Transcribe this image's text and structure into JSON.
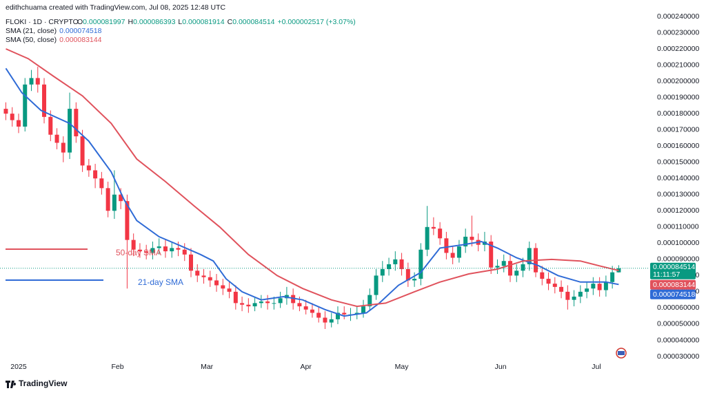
{
  "chart_data": {
    "type": "candlestick",
    "creator": "edithchuama created with TradingView.com, Jul 08, 2025 12:48 UTC",
    "symbol": "FLOKI · 1D · CRYPTO",
    "ohlc_labels": [
      "O",
      "H",
      "L",
      "C"
    ],
    "change_label": "+0.000002517 (+3.07%)",
    "countdown": "11:11:57",
    "brand": "TradingView",
    "up_color": "#089981",
    "down_color": "#f23645",
    "candles": {
      "x": [
        -4,
        -2,
        0,
        2,
        4,
        6,
        8,
        10,
        12,
        14,
        16,
        18,
        20,
        22,
        24,
        26,
        28,
        30,
        32,
        34,
        36,
        38,
        40,
        42,
        44,
        46,
        48,
        50,
        52,
        54,
        56,
        58,
        60,
        62,
        64,
        66,
        68,
        70,
        72,
        74,
        76,
        78,
        80,
        82,
        84,
        86,
        88,
        90,
        92,
        94,
        96,
        98,
        100,
        102,
        104,
        106,
        108,
        110,
        112,
        114,
        116,
        118,
        120,
        122,
        124,
        126,
        128,
        130,
        132,
        134,
        136,
        138,
        140,
        142,
        144,
        146,
        148,
        150,
        152,
        154,
        156,
        158,
        160,
        162,
        164,
        166,
        168,
        170,
        172,
        174,
        176,
        178,
        180,
        182,
        184,
        186,
        188
      ],
      "open": [
        0.000183,
        0.00018,
        0.000176,
        0.000172,
        0.000198,
        0.000202,
        0.000198,
        0.000178,
        0.000167,
        0.000162,
        0.000156,
        0.000183,
        0.000166,
        0.000148,
        0.000145,
        0.00014,
        0.000134,
        0.00012,
        0.00013,
        0.000126,
        0.000102,
        9.6e-05,
        9.5e-05,
        9.4e-05,
        9.7e-05,
        9.8e-05,
        9.5e-05,
        9.7e-05,
        9.6e-05,
        9.3e-05,
        8.3e-05,
        8e-05,
        7.9e-05,
        7.7e-05,
        7.4e-05,
        7.2e-05,
        7e-05,
        6.3e-05,
        6.2e-05,
        6.1e-05,
        6.3e-05,
        6.4e-05,
        6.3e-05,
        6.3e-05,
        6.6e-05,
        6.8e-05,
        6.3e-05,
        6.1e-05,
        5.9e-05,
        5.7e-05,
        5.4e-05,
        5.1e-05,
        5.3e-05,
        5.7e-05,
        5.6e-05,
        5.6e-05,
        5.7e-05,
        6.1e-05,
        6.8e-05,
        8e-05,
        8.4e-05,
        8.7e-05,
        9e-05,
        8.4e-05,
        7.7e-05,
        7.8e-05,
        9.6e-05,
        0.00011,
        0.000109,
        0.000103,
        9.4e-05,
        9.1e-05,
        9.8e-05,
        0.000104,
        0.000102,
        9.9e-05,
        0.000101,
        8.5e-05,
        8.6e-05,
        8.9e-05,
        8e-05,
        8.3e-05,
        8.7e-05,
        9.7e-05,
        8.2e-05,
        7.8e-05,
        7.5e-05,
        7.3e-05,
        7e-05,
        6.5e-05,
        6.7e-05,
        7e-05,
        7.2e-05,
        7.5e-05,
        7.1e-05,
        7.6e-05,
        8.1997e-05
      ],
      "high": [
        0.000187,
        0.000184,
        0.00018,
        0.000202,
        0.000207,
        0.000209,
        0.000202,
        0.000182,
        0.000171,
        0.000166,
        0.000193,
        0.000187,
        0.00017,
        0.000152,
        0.000149,
        0.000144,
        0.000138,
        0.000145,
        0.000134,
        0.00013,
        0.000106,
        0.0001,
        9.9e-05,
        0.000101,
        0.000103,
        0.000102,
        0.000101,
        0.000101,
        0.0001,
        9.7e-05,
        8.7e-05,
        8.4e-05,
        8.3e-05,
        8.1e-05,
        7.8e-05,
        7.6e-05,
        7.4e-05,
        6.7e-05,
        6.6e-05,
        6.7e-05,
        6.8e-05,
        6.8e-05,
        6.7e-05,
        7e-05,
        7.3e-05,
        7.2e-05,
        6.7e-05,
        6.5e-05,
        6.3e-05,
        6.1e-05,
        5.8e-05,
        5.7e-05,
        6.1e-05,
        6.1e-05,
        6e-05,
        6.1e-05,
        6.5e-05,
        7.2e-05,
        8.4e-05,
        8.9e-05,
        9.1e-05,
        9.5e-05,
        9.4e-05,
        8.8e-05,
        8.2e-05,
        0.0001,
        0.000123,
        0.000116,
        0.000113,
        0.000107,
        9.8e-05,
        0.000102,
        0.000109,
        0.000117,
        0.000106,
        0.000107,
        0.000105,
        9e-05,
        9.3e-05,
        9.3e-05,
        8.7e-05,
        9.1e-05,
        0.000101,
        0.0001,
        8.6e-05,
        8.2e-05,
        7.9e-05,
        7.7e-05,
        7.4e-05,
        7.1e-05,
        7.4e-05,
        7.6e-05,
        7.9e-05,
        7.9e-05,
        8e-05,
        8.6e-05,
        8.6393e-05
      ],
      "low": [
        0.000176,
        0.000172,
        0.000168,
        0.000169,
        0.000194,
        0.000193,
        0.000174,
        0.000163,
        0.000158,
        0.00015,
        0.000152,
        0.000162,
        0.000144,
        0.000141,
        0.000134,
        0.00013,
        0.000116,
        0.000115,
        0.000121,
        7.2e-05,
        9.2e-05,
        9.1e-05,
        9e-05,
        9e-05,
        9.3e-05,
        9.1e-05,
        9.1e-05,
        9.2e-05,
        8.9e-05,
        7.9e-05,
        7.6e-05,
        7.5e-05,
        7.3e-05,
        7e-05,
        6.8e-05,
        6.6e-05,
        5.9e-05,
        5.8e-05,
        5.7e-05,
        5.8e-05,
        6e-05,
        5.9e-05,
        5.9e-05,
        6e-05,
        6.2e-05,
        5.9e-05,
        5.8e-05,
        5.6e-05,
        5.4e-05,
        5.1e-05,
        4.7e-05,
        4.8e-05,
        5e-05,
        5.3e-05,
        5.2e-05,
        5.3e-05,
        5.4e-05,
        5.8e-05,
        6.5e-05,
        7.6e-05,
        8e-05,
        8.3e-05,
        8e-05,
        7.3e-05,
        7.3e-05,
        7.4e-05,
        9.2e-05,
        0.000105,
        9.9e-05,
        9e-05,
        8.7e-05,
        8.8e-05,
        9.4e-05,
        9.8e-05,
        9.5e-05,
        9.5e-05,
        8.1e-05,
        8.1e-05,
        8.2e-05,
        7.6e-05,
        7.6e-05,
        7.9e-05,
        8.3e-05,
        7.9e-05,
        7.4e-05,
        7.1e-05,
        6.9e-05,
        6.6e-05,
        5.9e-05,
        6.1e-05,
        6.3e-05,
        6.6e-05,
        6.8e-05,
        6.7e-05,
        6.7e-05,
        7.2e-05,
        8.1914e-05
      ],
      "close": [
        0.00018,
        0.000176,
        0.000172,
        0.000198,
        0.000202,
        0.000198,
        0.000178,
        0.000167,
        0.000162,
        0.000156,
        0.000183,
        0.000166,
        0.000148,
        0.000145,
        0.00014,
        0.000134,
        0.00012,
        0.00013,
        0.000126,
        0.000102,
        9.6e-05,
        9.5e-05,
        9.4e-05,
        9.7e-05,
        9.8e-05,
        9.5e-05,
        9.7e-05,
        9.6e-05,
        9.3e-05,
        8.3e-05,
        8e-05,
        7.9e-05,
        7.7e-05,
        7.4e-05,
        7.2e-05,
        7e-05,
        6.3e-05,
        6.2e-05,
        6.1e-05,
        6.3e-05,
        6.4e-05,
        6.3e-05,
        6.3e-05,
        6.6e-05,
        6.8e-05,
        6.3e-05,
        6.1e-05,
        5.9e-05,
        5.7e-05,
        5.4e-05,
        5.1e-05,
        5.3e-05,
        5.7e-05,
        5.6e-05,
        5.6e-05,
        5.7e-05,
        6.1e-05,
        6.8e-05,
        8e-05,
        8.4e-05,
        8.7e-05,
        9e-05,
        8.4e-05,
        7.7e-05,
        7.8e-05,
        9.6e-05,
        0.00011,
        0.000109,
        0.000103,
        9.4e-05,
        9.1e-05,
        9.8e-05,
        0.000104,
        0.000102,
        9.9e-05,
        0.000101,
        8.5e-05,
        8.6e-05,
        8.9e-05,
        8e-05,
        8.3e-05,
        8.7e-05,
        9.7e-05,
        8.2e-05,
        7.8e-05,
        7.5e-05,
        7.3e-05,
        7e-05,
        6.5e-05,
        6.7e-05,
        7e-05,
        7.2e-05,
        7.5e-05,
        7.1e-05,
        7.6e-05,
        8.2e-05,
        8.4514e-05
      ]
    },
    "series": [
      {
        "name": "SMA (21, close)",
        "color": "#2f6bd6",
        "x": [
          -4,
          1,
          7,
          16,
          22,
          29,
          33,
          37,
          44,
          50,
          57,
          61,
          65,
          70,
          76,
          83,
          89,
          96,
          102,
          109,
          113,
          119,
          126,
          132,
          139,
          145,
          150,
          156,
          163,
          169,
          176,
          180,
          184,
          188
        ],
        "values": [
          0.000208,
          0.000193,
          0.000182,
          0.000174,
          0.000163,
          0.000144,
          0.000127,
          0.000114,
          0.000104,
          9.9e-05,
          9.3e-05,
          8.9e-05,
          7.8e-05,
          7e-05,
          6.5e-05,
          6.7e-05,
          6.5e-05,
          5.9e-05,
          5.5e-05,
          5.7e-05,
          6.3e-05,
          7.4e-05,
          8.2e-05,
          9.7e-05,
          9.9e-05,
          0.000101,
          9.7e-05,
          9.1e-05,
          8.6e-05,
          8e-05,
          7.6e-05,
          7.6e-05,
          7.6e-05,
          7.4518e-05
        ]
      },
      {
        "name": "SMA (50, close)",
        "color": "#e0525c",
        "x": [
          -4,
          3,
          11,
          20,
          29,
          37,
          46,
          55,
          63,
          72,
          81,
          89,
          98,
          106,
          115,
          124,
          132,
          141,
          150,
          158,
          167,
          176,
          182,
          188
        ],
        "values": [
          0.00022,
          0.000214,
          0.000203,
          0.000191,
          0.000174,
          0.000152,
          0.000138,
          0.000123,
          0.00011,
          9.3e-05,
          8e-05,
          7.2e-05,
          6.5e-05,
          6.1e-05,
          6.3e-05,
          7e-05,
          7.6e-05,
          8.1e-05,
          8.4e-05,
          8.9e-05,
          9e-05,
          8.9e-05,
          8.6e-05,
          8.3144e-05
        ]
      }
    ],
    "annotations": [
      {
        "text": "50-day SMA",
        "color": "#e0525c"
      },
      {
        "text": "21-day SMA",
        "color": "#2f6bd6"
      }
    ],
    "xlim": [
      -5.83,
      197.2
    ],
    "xticks": [
      {
        "value": 0,
        "label": "2025"
      },
      {
        "value": 31,
        "label": "Feb"
      },
      {
        "value": 59,
        "label": "Mar"
      },
      {
        "value": 90,
        "label": "Apr"
      },
      {
        "value": 120,
        "label": "May"
      },
      {
        "value": 151,
        "label": "Jun"
      },
      {
        "value": 181,
        "label": "Jul"
      }
    ],
    "ylim": [
      2.065e-05,
      0.0002502
    ],
    "yticks": [
      {
        "value": 3e-05,
        "label": "0.000030000"
      },
      {
        "value": 4e-05,
        "label": "0.000040000"
      },
      {
        "value": 5e-05,
        "label": "0.000050000"
      },
      {
        "value": 6e-05,
        "label": "0.000060000"
      },
      {
        "value": 7e-05,
        "label": "0.000070000"
      },
      {
        "value": 8e-05,
        "label": "0.000080000"
      },
      {
        "value": 9e-05,
        "label": "0.000090000"
      },
      {
        "value": 0.0001,
        "label": "0.000100000"
      },
      {
        "value": 0.00011,
        "label": "0.000110000"
      },
      {
        "value": 0.00012,
        "label": "0.000120000"
      },
      {
        "value": 0.00013,
        "label": "0.000130000"
      },
      {
        "value": 0.00014,
        "label": "0.000140000"
      },
      {
        "value": 0.00015,
        "label": "0.000150000"
      },
      {
        "value": 0.00016,
        "label": "0.000160000"
      },
      {
        "value": 0.00017,
        "label": "0.000170000"
      },
      {
        "value": 0.00018,
        "label": "0.000180000"
      },
      {
        "value": 0.00019,
        "label": "0.000190000"
      },
      {
        "value": 0.0002,
        "label": "0.000200000"
      },
      {
        "value": 0.00021,
        "label": "0.000210000"
      },
      {
        "value": 0.00022,
        "label": "0.000220000"
      },
      {
        "value": 0.00023,
        "label": "0.000230000"
      },
      {
        "value": 0.00024,
        "label": "0.000240000"
      }
    ],
    "grid": false
  }
}
